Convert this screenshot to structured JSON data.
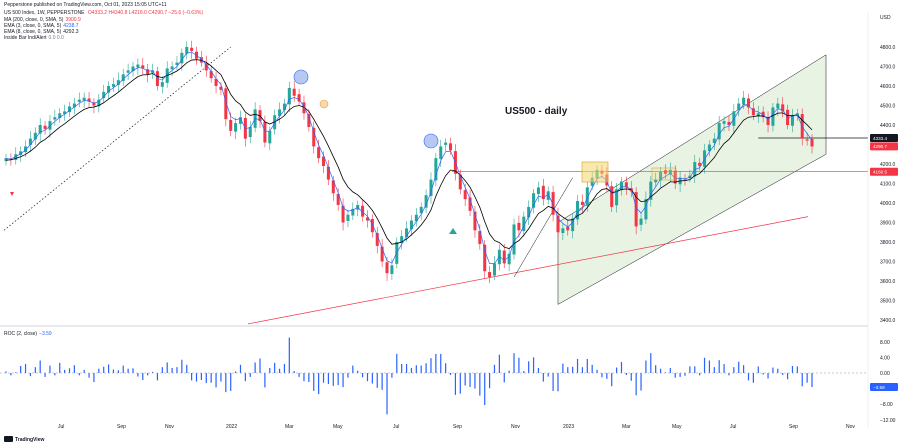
{
  "header": {
    "publisher": "Pepperstone published on TradingView.com, Oct 01, 2023 15:05 UTC+11",
    "symbol": "US 500 Index, 1W, PEPPERSTONE",
    "ohlc": "O4333.2 H4340.8 L4216.0 C4290.7 −25.6 (−0.63%)",
    "ind1": "MA (200, close, 0, SMA, 5)",
    "ind1_val": "3900.9",
    "ind2": "EMA (3, close, 0, SMA, 5)",
    "ind2_val": "4238.7",
    "ind3": "EMA (8, close, 0, SMA, 5)",
    "ind3_val": "4292.3",
    "ind4": "Inside Bar Ind/Alert",
    "ind4_val": "0.0  0.0",
    "roc_label": "ROC (2, close)",
    "roc_val": "−3.59"
  },
  "annotation": "US500 - daily",
  "currency": "USD",
  "footer_logo": "TradingView",
  "colors": {
    "up": "#26a69a",
    "down": "#f23645",
    "ema3": "#2962ff",
    "ema8": "#000000",
    "ma200": "#f23645",
    "channel": "#e8f3e4",
    "roc": "#2962ff"
  },
  "chart_data": [
    {
      "type": "candlestick",
      "x_tick_labels": [
        "Jul",
        "Sep",
        "Nov",
        "2022",
        "Mar",
        "May",
        "Jul",
        "Sep",
        "Nov",
        "2023",
        "Mar",
        "May",
        "Jul",
        "Sep",
        "Nov"
      ],
      "y_tick_labels": [
        "3400.0",
        "3500.0",
        "3600.0",
        "3700.0",
        "3800.0",
        "3900.0",
        "4000.0",
        "4100.0",
        "4200.0",
        "4300.0",
        "4400.0",
        "4500.0",
        "4600.0",
        "4700.0",
        "4800.0"
      ],
      "ylim": [
        3340,
        4900
      ],
      "price_tags": [
        {
          "value": 4333.4,
          "label": "4333.4",
          "color": "#131722"
        },
        {
          "value": 4290.7,
          "label": "4290.7",
          "color": "#f23645"
        },
        {
          "value": 4160.5,
          "label": "4160.5",
          "color": "#f23645"
        }
      ],
      "horizontal_lines": [
        {
          "value": 4160.5,
          "color": "#f23645"
        },
        {
          "value": 4333.4,
          "color": "#131722"
        }
      ],
      "close": [
        4230,
        4225,
        4250,
        4265,
        4290,
        4330,
        4360,
        4400,
        4380,
        4420,
        4440,
        4460,
        4470,
        4495,
        4510,
        4530,
        4540,
        4520,
        4500,
        4530,
        4570,
        4600,
        4610,
        4630,
        4660,
        4680,
        4700,
        4710,
        4690,
        4660,
        4680,
        4600,
        4620,
        4690,
        4700,
        4720,
        4770,
        4800,
        4780,
        4740,
        4720,
        4680,
        4640,
        4600,
        4580,
        4430,
        4370,
        4410,
        4440,
        4330,
        4390,
        4480,
        4420,
        4310,
        4370,
        4450,
        4480,
        4510,
        4590,
        4550,
        4520,
        4460,
        4390,
        4290,
        4230,
        4190,
        4120,
        4050,
        3990,
        3900,
        3940,
        3970,
        3990,
        3930,
        3910,
        3850,
        3780,
        3700,
        3640,
        3680,
        3800,
        3830,
        3870,
        3910,
        3940,
        3980,
        4040,
        4120,
        4230,
        4290,
        4310,
        4270,
        4150,
        4070,
        4020,
        3960,
        3860,
        3790,
        3650,
        3620,
        3690,
        3760,
        3690,
        3740,
        3890,
        3860,
        3930,
        3980,
        4050,
        4080,
        4020,
        4060,
        3940,
        3850,
        3870,
        3860,
        3920,
        4010,
        3990,
        4080,
        4130,
        4170,
        4150,
        4090,
        3980,
        4070,
        4110,
        4080,
        4060,
        3880,
        3920,
        4020,
        4110,
        4120,
        4160,
        4150,
        4170,
        4100,
        4130,
        4120,
        4140,
        4210,
        4190,
        4270,
        4300,
        4330,
        4410,
        4420,
        4400,
        4470,
        4510,
        4540,
        4490,
        4450,
        4460,
        4440,
        4400,
        4490,
        4510,
        4470,
        4400,
        4450,
        4460,
        4330,
        4320,
        4290
      ],
      "ema3": [
        4228,
        4226,
        4238,
        4252,
        4271,
        4300,
        4330,
        4365,
        4372,
        4396,
        4418,
        4439,
        4455,
        4475,
        4492,
        4511,
        4526,
        4523,
        4511,
        4520,
        4545,
        4573,
        4591,
        4610,
        4635,
        4658,
        4679,
        4694,
        4692,
        4676,
        4678,
        4639,
        4630,
        4660,
        4680,
        4700,
        4735,
        4768,
        4774,
        4757,
        4738,
        4709,
        4675,
        4637,
        4608,
        4519,
        4444,
        4427,
        4433,
        4382,
        4386,
        4433,
        4427,
        4368,
        4369,
        4410,
        4445,
        4477,
        4533,
        4541,
        4531,
        4495,
        4443,
        4366,
        4298,
        4244,
        4182,
        4116,
        4053,
        3976,
        3958,
        3964,
        3977,
        3953,
        3932,
        3891,
        3835,
        3768,
        3704,
        3692,
        3746,
        3788,
        3829,
        3869,
        3905,
        3942,
        3991,
        4055,
        4143,
        4216,
        4263,
        4266,
        4208,
        4139,
        4080,
        4020,
        3940,
        3865,
        3757,
        3689,
        3689,
        3725,
        3707,
        3724,
        3807,
        3833,
        3882,
        3931,
        3990,
        4035,
        4028,
        4044,
        3992,
        3921,
        3895,
        3878,
        3899,
        3955,
        3972,
        4026,
        4078,
        4124,
        4137,
        4113,
        4047,
        4058,
        4084,
        4082,
        4071,
        3976,
        3948,
        3984,
        4047,
        4083,
        4122,
        4136,
        4153,
        4126,
        4128,
        4124,
        4132,
        4171,
        4181,
        4225,
        4263,
        4296,
        4353,
        4387,
        4393,
        4432,
        4471,
        4506,
        4498,
        4474,
        4467,
        4453,
        4427,
        4458,
        4484,
        4477,
        4438,
        4444,
        4452,
        4391,
        4356,
        4323
      ],
      "ema8": [
        4220,
        4221,
        4229,
        4237,
        4249,
        4266,
        4286,
        4311,
        4326,
        4347,
        4368,
        4389,
        4406,
        4426,
        4445,
        4464,
        4480,
        4489,
        4492,
        4500,
        4514,
        4533,
        4550,
        4568,
        4589,
        4610,
        4630,
        4648,
        4657,
        4658,
        4664,
        4649,
        4643,
        4654,
        4664,
        4677,
        4696,
        4719,
        4733,
        4735,
        4732,
        4721,
        4703,
        4680,
        4658,
        4608,
        4557,
        4524,
        4505,
        4466,
        4449,
        4455,
        4447,
        4416,
        4405,
        4416,
        4430,
        4448,
        4478,
        4495,
        4500,
        4492,
        4470,
        4430,
        4386,
        4342,
        4292,
        4238,
        4185,
        4122,
        4082,
        4057,
        4042,
        4017,
        3993,
        3962,
        3921,
        3872,
        3820,
        3789,
        3792,
        3800,
        3815,
        3837,
        3860,
        3887,
        3921,
        3965,
        4035,
        4091,
        4140,
        4169,
        4164,
        4143,
        4115,
        4081,
        4032,
        3978,
        3905,
        3841,
        3808,
        3797,
        3774,
        3766,
        3792,
        3807,
        3835,
        3868,
        3908,
        3946,
        3962,
        3983,
        3974,
        3946,
        3928,
        3912,
        3914,
        3935,
        3947,
        3977,
        4011,
        4047,
        4069,
        4074,
        4054,
        4058,
        4070,
        4072,
        4069,
        4030,
        4007,
        4010,
        4032,
        4052,
        4076,
        4092,
        4109,
        4107,
        4113,
        4115,
        4120,
        4140,
        4151,
        4178,
        4205,
        4233,
        4272,
        4305,
        4326,
        4359,
        4393,
        4425,
        4440,
        4443,
        4447,
        4446,
        4436,
        4448,
        4461,
        4462,
        4448,
        4449,
        4451,
        4424,
        4401,
        4375
      ],
      "ma200_range": [
        {
          "x": "2021-12",
          "y": 3380
        },
        {
          "x": "2023-09",
          "y": 3930
        }
      ],
      "channel": {
        "lower_start": 3480,
        "lower_end": 4250,
        "upper_start": 3900,
        "upper_end": 4760
      }
    },
    {
      "type": "bar",
      "name": "ROC (2, close)",
      "y_tick_labels": [
        "8.00",
        "4.00",
        "0.00",
        "−4.00",
        "−8.00",
        "−12.00"
      ],
      "ylim": [
        -13,
        10
      ],
      "values": [
        0.4,
        -0.6,
        0.2,
        1.8,
        2.3,
        -0.8,
        1.5,
        3.2,
        -1.0,
        1.9,
        -0.6,
        2.6,
        0.8,
        1.2,
        2.0,
        -0.6,
        0.8,
        -1.2,
        -2.3,
        1.1,
        1.6,
        2.2,
        0.9,
        0.7,
        1.9,
        1.1,
        1.2,
        -0.9,
        -1.8,
        -0.6,
        0.3,
        -1.9,
        1.5,
        2.7,
        1.3,
        1.5,
        3.4,
        2.1,
        -1.9,
        -2.2,
        -1.8,
        -2.6,
        -2.5,
        -3.7,
        -2.2,
        -4.9,
        -4.6,
        0.4,
        2.1,
        -2.1,
        -1.0,
        2.7,
        3.7,
        -3.7,
        1.3,
        2.6,
        1.1,
        2.3,
        9.1,
        0.5,
        -1.0,
        -2.1,
        -2.3,
        -4.6,
        -5.4,
        -2.5,
        -2.8,
        -3.3,
        -3.1,
        -3.6,
        -1.2,
        1.9,
        0.6,
        -1.1,
        -2.1,
        -2.7,
        -3.8,
        -4.3,
        -10.6,
        -1.2,
        4.9,
        2.3,
        2.3,
        1.3,
        2.0,
        1.9,
        2.5,
        3.8,
        4.9,
        4.9,
        2.5,
        -0.5,
        -5.6,
        -5.3,
        -3.2,
        -3.6,
        -4.0,
        -5.8,
        -8.2,
        -3.9,
        2.1,
        4.7,
        -2.4,
        0.6,
        5.1,
        3.9,
        0.5,
        3.0,
        4.0,
        1.3,
        -2.2,
        -0.9,
        -4.6,
        -4.7,
        2.4,
        1.5,
        1.6,
        3.6,
        1.5,
        3.6,
        2.1,
        0.8,
        -1.1,
        -1.5,
        -3.4,
        1.4,
        2.8,
        -0.5,
        -2.0,
        -5.7,
        -4.5,
        3.2,
        5.1,
        2.0,
        1.1,
        0.2,
        1.3,
        -1.2,
        -1.0,
        -0.7,
        1.7,
        1.7,
        -0.6,
        3.9,
        3.2,
        1.5,
        3.3,
        2.3,
        -0.6,
        1.5,
        2.9,
        2.0,
        -1.9,
        -2.5,
        1.7,
        -0.4,
        -1.4,
        1.4,
        1.1,
        -0.5,
        -1.6,
        1.8,
        1.7,
        -3.4,
        -2.5,
        -3.6
      ]
    }
  ]
}
